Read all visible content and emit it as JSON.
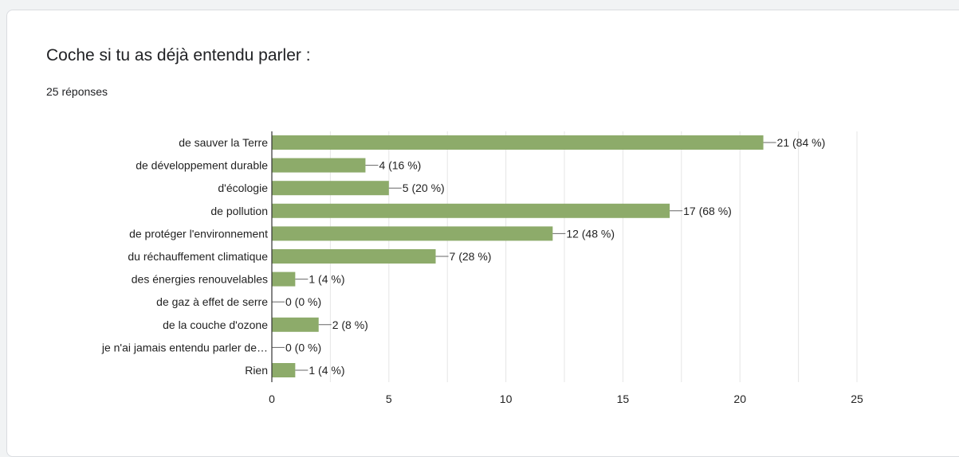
{
  "question": {
    "title": "Coche si tu as déjà entendu parler :",
    "responses": "25 réponses"
  },
  "colors": {
    "bar": "#8dab6a",
    "grid": "#e5e5e5",
    "axis": "#333333"
  },
  "chart_data": {
    "type": "bar",
    "orientation": "horizontal",
    "categories": [
      "de sauver la Terre",
      "de développement durable",
      "d'écologie",
      "de pollution",
      "de protéger l'environnement",
      "du réchauffement climatique",
      "des énergies renouvelables",
      "de gaz à effet de serre",
      "de la couche d'ozone",
      "je n'ai jamais entendu parler de…",
      "Rien"
    ],
    "values": [
      21,
      4,
      5,
      17,
      12,
      7,
      1,
      0,
      2,
      0,
      1
    ],
    "data_labels": [
      "21 (84 %)",
      "4 (16 %)",
      "5 (20 %)",
      "17 (68 %)",
      "12 (48 %)",
      "7 (28 %)",
      "1 (4 %)",
      "0 (0 %)",
      "2 (8 %)",
      "0 (0 %)",
      "1 (4 %)"
    ],
    "xlim": [
      0,
      25
    ],
    "xticks": [
      0,
      5,
      10,
      15,
      20,
      25
    ],
    "grid": true
  }
}
